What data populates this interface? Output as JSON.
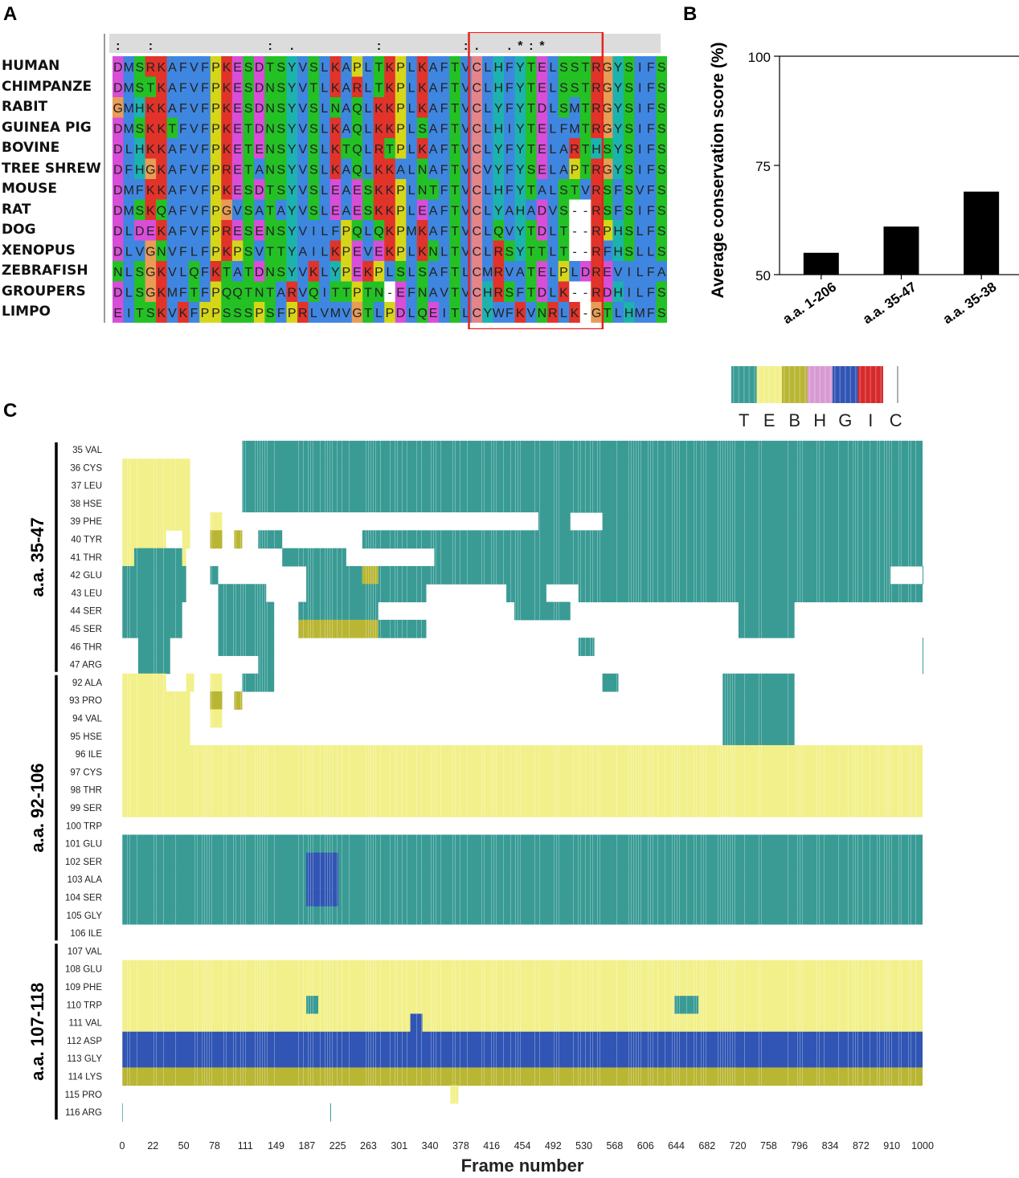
{
  "panels": {
    "a": "A",
    "b": "B",
    "c": "C"
  },
  "alignment": {
    "conservation_line": ":  :          : .       :       :.  .*:*                 :::",
    "species": [
      "HUMAN",
      "CHIMPANZE",
      "RABIT",
      "GUINEA PIG",
      "BOVINE",
      "TREE SHREW",
      "MOUSE",
      "RAT",
      "DOG",
      "XENOPUS",
      "ZEBRAFISH",
      "GROUPERS",
      "LIMPO"
    ],
    "sequences": [
      "DMSRKAFVFPKESDTSYVSLKAPLTKPLKAFTVCLHFYTELSSTRGYSIFS",
      "DMSTKAFVFPKESDNSYVTLKARLTKPLKAFTVCLHFYTELSSTRGYSIFS",
      "GMHKKAFVFPKESDNSYVSLNAQLKKPLKAFTVCLYFYTDLSMTRGYSIFS",
      "DMSKKTFVFPKETDNSYVSLKAQLKKPLSAFTVCLHIYTELFMTRGYSIFS",
      "DLHKKAFVFPKETENSYVSLKTQLRTPLKAFTVCLYFYTELARTHSYSIFS",
      "DFHGKAFVFPRETANSYVSLKAQLKKALNAFTVCVYFYSELAPTRGYSIFS",
      "DMFKKAFVFPKESDTSYVSLEAESKKPLNTFTVCLHFYTALSTVRSFSVFS",
      "DMSKQAFVFPGVSATAYVSLEAESKKPLEAFTVCLYAHADVS--RSFSIFS",
      "DLDEKAFVFPRESENSYVILFPQLQKPMKAFTVCLQVYTDLT--RPHSLFS",
      "DLVGNVFLFPKPSVTTYAILKPEVEKPLKNLTVCLRSYTTLT--RFHSLLS",
      "NLSGKVLQFKTATDNSYVKLYPEKPLSLSAFTLCMRVATELPLDREVILFA",
      "DLSGKMFTFPQQTNTARVQITTPTN-EFNAVTVCHRSFTDLK--RDHILFS",
      "EITSKVKFPPSSSPSFPRLVMVGTLPDLQEITLCYWFKVNRLK-GTLHMFS"
    ],
    "highlight": {
      "start_col": 33,
      "end_col": 45
    }
  },
  "legend": {
    "labels": [
      "T",
      "E",
      "B",
      "H",
      "G",
      "I",
      "C"
    ],
    "colors": [
      "#3a9b95",
      "#f2f08a",
      "#b9b634",
      "#d89ad2",
      "#3055b4",
      "#d72a2a",
      "#ffffff"
    ]
  },
  "chart_data": [
    {
      "type": "bar",
      "title": "",
      "categories": [
        "a.a. 1-206",
        "a.a. 35-47",
        "a.a. 35-38"
      ],
      "values": [
        55,
        61,
        69
      ],
      "ylabel": "Average conservation score (%)",
      "xlabel": "",
      "ylim": [
        50,
        100
      ],
      "yticks": [
        50,
        75,
        100
      ],
      "color": "#000000"
    },
    {
      "type": "heatmap",
      "title": "",
      "xlabel": "Frame number",
      "xticks": [
        "0",
        "22",
        "50",
        "78",
        "111",
        "149",
        "187",
        "225",
        "263",
        "301",
        "340",
        "378",
        "416",
        "454",
        "492",
        "530",
        "568",
        "606",
        "644",
        "682",
        "720",
        "758",
        "796",
        "834",
        "872",
        "910",
        "1000"
      ],
      "xrange": [
        0,
        1000
      ],
      "residues": [
        "35 VAL",
        "36 CYS",
        "37 LEU",
        "38 HSE",
        "39 PHE",
        "40 TYR",
        "41 THR",
        "42 GLU",
        "43 LEU",
        "44 SER",
        "45 SER",
        "46 THR",
        "47 ARG",
        "92 ALA",
        "93 PRO",
        "94 VAL",
        "95 HSE",
        "96 ILE",
        "97 CYS",
        "98 THR",
        "99 SER",
        "100 TRP",
        "101 GLU",
        "102 SER",
        "103 ALA",
        "104 SER",
        "105 GLY",
        "106 ILE",
        "107 VAL",
        "108 GLU",
        "109 PHE",
        "110 TRP",
        "111 VAL",
        "112 ASP",
        "113 GLY",
        "114 LYS",
        "115 PRO",
        "116 ARG"
      ],
      "groups": [
        {
          "label": "a.a. 35-47",
          "from": 0,
          "to": 12
        },
        {
          "label": "a.a. 92-106",
          "from": 13,
          "to": 27
        },
        {
          "label": "a.a. 107-118",
          "from": 28,
          "to": 37
        }
      ],
      "segments": [
        [
          [
            0,
            150,
            "C"
          ],
          [
            150,
            1000,
            "T"
          ]
        ],
        [
          [
            0,
            85,
            "E"
          ],
          [
            85,
            150,
            "C"
          ],
          [
            150,
            1000,
            "T"
          ]
        ],
        [
          [
            0,
            85,
            "E"
          ],
          [
            85,
            150,
            "C"
          ],
          [
            150,
            1000,
            "T"
          ]
        ],
        [
          [
            0,
            85,
            "E"
          ],
          [
            85,
            150,
            "C"
          ],
          [
            150,
            1000,
            "T"
          ]
        ],
        [
          [
            0,
            85,
            "E"
          ],
          [
            110,
            125,
            "E"
          ],
          [
            150,
            520,
            "C"
          ],
          [
            520,
            560,
            "T"
          ],
          [
            600,
            1000,
            "T"
          ]
        ],
        [
          [
            0,
            55,
            "E"
          ],
          [
            75,
            85,
            "E"
          ],
          [
            110,
            125,
            "B"
          ],
          [
            140,
            150,
            "B"
          ],
          [
            170,
            200,
            "T"
          ],
          [
            300,
            1000,
            "T"
          ]
        ],
        [
          [
            0,
            15,
            "E"
          ],
          [
            15,
            75,
            "T"
          ],
          [
            75,
            80,
            "E"
          ],
          [
            200,
            280,
            "T"
          ],
          [
            390,
            1000,
            "T"
          ]
        ],
        [
          [
            0,
            80,
            "T"
          ],
          [
            110,
            120,
            "T"
          ],
          [
            230,
            300,
            "T"
          ],
          [
            300,
            320,
            "B"
          ],
          [
            320,
            960,
            "T"
          ],
          [
            1000,
            1020,
            "T"
          ]
        ],
        [
          [
            0,
            80,
            "T"
          ],
          [
            120,
            180,
            "T"
          ],
          [
            230,
            380,
            "T"
          ],
          [
            480,
            530,
            "T"
          ],
          [
            570,
            1020,
            "T"
          ]
        ],
        [
          [
            0,
            75,
            "T"
          ],
          [
            120,
            190,
            "T"
          ],
          [
            220,
            320,
            "T"
          ],
          [
            490,
            560,
            "T"
          ],
          [
            770,
            840,
            "T"
          ]
        ],
        [
          [
            0,
            75,
            "T"
          ],
          [
            120,
            190,
            "T"
          ],
          [
            220,
            320,
            "B"
          ],
          [
            320,
            380,
            "T"
          ],
          [
            770,
            840,
            "T"
          ]
        ],
        [
          [
            20,
            60,
            "T"
          ],
          [
            120,
            190,
            "T"
          ],
          [
            570,
            590,
            "T"
          ],
          [
            1000,
            1020,
            "T"
          ]
        ],
        [
          [
            20,
            60,
            "T"
          ],
          [
            170,
            190,
            "T"
          ],
          [
            1000,
            1020,
            "T"
          ]
        ],
        [
          [
            0,
            55,
            "E"
          ],
          [
            80,
            90,
            "E"
          ],
          [
            110,
            125,
            "E"
          ],
          [
            150,
            190,
            "T"
          ],
          [
            600,
            620,
            "T"
          ],
          [
            750,
            840,
            "T"
          ]
        ],
        [
          [
            0,
            85,
            "E"
          ],
          [
            110,
            125,
            "B"
          ],
          [
            140,
            150,
            "B"
          ],
          [
            750,
            840,
            "T"
          ]
        ],
        [
          [
            0,
            85,
            "E"
          ],
          [
            110,
            125,
            "E"
          ],
          [
            750,
            840,
            "T"
          ]
        ],
        [
          [
            0,
            85,
            "E"
          ],
          [
            750,
            840,
            "T"
          ]
        ],
        [
          [
            0,
            1000,
            "E"
          ]
        ],
        [
          [
            0,
            1000,
            "E"
          ]
        ],
        [
          [
            0,
            1000,
            "E"
          ]
        ],
        [
          [
            0,
            1000,
            "E"
          ]
        ],
        [],
        [
          [
            0,
            1000,
            "T"
          ]
        ],
        [
          [
            0,
            1000,
            "T"
          ],
          [
            230,
            270,
            "G"
          ]
        ],
        [
          [
            0,
            1000,
            "T"
          ],
          [
            230,
            270,
            "G"
          ]
        ],
        [
          [
            0,
            1000,
            "T"
          ],
          [
            230,
            270,
            "G"
          ]
        ],
        [
          [
            0,
            1000,
            "T"
          ]
        ],
        [],
        [],
        [
          [
            0,
            1000,
            "E"
          ]
        ],
        [
          [
            0,
            1000,
            "E"
          ]
        ],
        [
          [
            0,
            1000,
            "E"
          ],
          [
            230,
            245,
            "T"
          ],
          [
            690,
            720,
            "T"
          ]
        ],
        [
          [
            0,
            1000,
            "E"
          ],
          [
            360,
            375,
            "G"
          ]
        ],
        [
          [
            0,
            1000,
            "G"
          ]
        ],
        [
          [
            0,
            1000,
            "G"
          ]
        ],
        [
          [
            0,
            1000,
            "B"
          ]
        ],
        [
          [
            410,
            420,
            "E"
          ]
        ],
        [
          [
            0,
            1,
            "T"
          ],
          [
            260,
            261,
            "T"
          ]
        ]
      ]
    }
  ]
}
